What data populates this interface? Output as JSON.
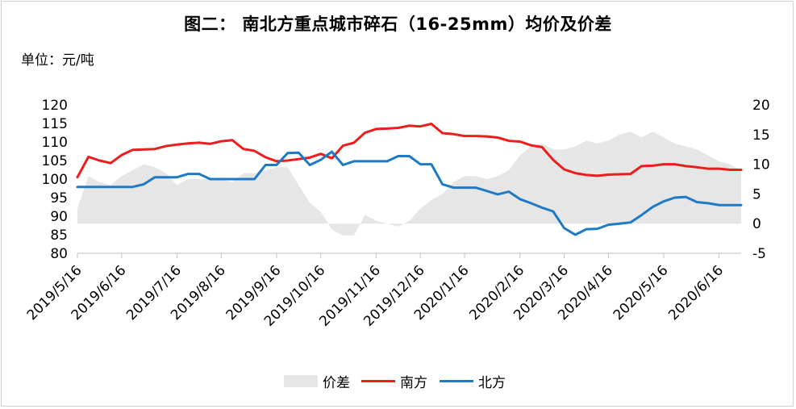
{
  "title": "图二：   南北方重点城市碎石（16-25mm）均价及价差",
  "unit": "单位：元/吨",
  "colors": {
    "spread": "#e6e6e6",
    "south": "#ee1c1c",
    "north": "#1e7ac6"
  },
  "chart_data": {
    "type": "line",
    "x": [
      "2019/5/16",
      "2019/5/23",
      "2019/5/30",
      "2019/6/6",
      "2019/6/13",
      "2019/6/20",
      "2019/6/27",
      "2019/7/4",
      "2019/7/11",
      "2019/7/18",
      "2019/7/25",
      "2019/8/1",
      "2019/8/8",
      "2019/8/15",
      "2019/8/22",
      "2019/8/29",
      "2019/9/5",
      "2019/9/12",
      "2019/9/19",
      "2019/9/26",
      "2019/10/3",
      "2019/10/10",
      "2019/10/17",
      "2019/10/24",
      "2019/10/31",
      "2019/11/7",
      "2019/11/14",
      "2019/11/21",
      "2019/11/28",
      "2019/12/5",
      "2019/12/12",
      "2019/12/19",
      "2019/12/26",
      "2020/1/2",
      "2020/1/9",
      "2020/1/16",
      "2020/1/23",
      "2020/1/30",
      "2020/2/6",
      "2020/2/13",
      "2020/2/20",
      "2020/2/27",
      "2020/3/5",
      "2020/3/12",
      "2020/3/19",
      "2020/3/26",
      "2020/4/2",
      "2020/4/9",
      "2020/4/16",
      "2020/4/23",
      "2020/4/30",
      "2020/5/7",
      "2020/5/14",
      "2020/5/21",
      "2020/5/28",
      "2020/6/4",
      "2020/6/11",
      "2020/6/18",
      "2020/6/25",
      "2020/7/2",
      "2020/7/9"
    ],
    "x_tick_labels": [
      "2019/5/16",
      "2019/6/16",
      "2019/7/16",
      "2019/8/16",
      "2019/9/16",
      "2019/10/16",
      "2019/11/16",
      "2019/12/16",
      "2020/1/16",
      "2020/2/16",
      "2020/3/16",
      "2020/4/16",
      "2020/5/16",
      "2020/6/16"
    ],
    "y_left": {
      "min": 80,
      "max": 120,
      "step": 5,
      "ticks": [
        "120",
        "115",
        "110",
        "105",
        "100",
        "95",
        "90",
        "85",
        "80"
      ]
    },
    "y_right": {
      "min": -5,
      "max": 20,
      "step": 5,
      "ticks": [
        "20",
        "15",
        "10",
        "5",
        "0",
        "-5"
      ]
    },
    "series": [
      {
        "name": "价差",
        "type": "area",
        "axis": "right",
        "values": [
          2.5,
          8,
          7,
          6.5,
          8,
          9,
          10,
          9.5,
          8.5,
          6.5,
          7.5,
          7.5,
          7.5,
          7.5,
          7,
          8.5,
          8.5,
          9,
          9.5,
          9.5,
          6.5,
          3.5,
          2,
          -1,
          -2,
          -2,
          1.5,
          0.5,
          0,
          -0.5,
          0.5,
          2.5,
          4,
          5,
          7,
          8,
          8,
          7.5,
          8,
          9,
          11.5,
          13,
          13.5,
          12.5,
          12.5,
          13,
          14,
          13.5,
          14,
          15,
          15.5,
          14.5,
          15.5,
          14.5,
          13.5,
          13,
          12.5,
          11.5,
          10.5,
          10,
          9
        ]
      },
      {
        "name": "南方",
        "type": "line",
        "axis": "left",
        "values": [
          100.5,
          106,
          105,
          104.3,
          106.5,
          107.9,
          108,
          108.1,
          108.9,
          109.3,
          109.6,
          109.8,
          109.5,
          110.2,
          110.5,
          108.1,
          107.6,
          105.9,
          104.8,
          105,
          105.4,
          105.8,
          106.8,
          105.6,
          109,
          109.8,
          112.5,
          113.5,
          113.6,
          113.8,
          114.4,
          114.2,
          114.9,
          112.4,
          112.1,
          111.6,
          111.6,
          111.5,
          111.2,
          110.3,
          110.1,
          109.1,
          108.6,
          105.2,
          102.6,
          101.6,
          101.1,
          100.9,
          101.2,
          101.3,
          101.4,
          103.5,
          103.6,
          104,
          104,
          103.5,
          103.2,
          102.8,
          102.8,
          102.5,
          102.5
        ]
      },
      {
        "name": "北方",
        "type": "line",
        "axis": "left",
        "values": [
          97.9,
          97.9,
          97.9,
          97.9,
          97.9,
          97.9,
          98.6,
          100.5,
          100.5,
          100.5,
          101.4,
          101.4,
          100,
          100,
          100,
          100,
          100,
          103.8,
          103.8,
          107,
          107.1,
          103.8,
          105.2,
          107.4,
          103.8,
          104.8,
          104.8,
          104.8,
          104.8,
          106.2,
          106.2,
          104,
          104,
          98.6,
          97.7,
          97.7,
          97.7,
          96.8,
          95.9,
          96.6,
          94.6,
          93.5,
          92.3,
          91.3,
          86.8,
          85,
          86.5,
          86.6,
          87.7,
          88,
          88.3,
          90.3,
          92.5,
          94,
          95,
          95.2,
          93.8,
          93.5,
          93,
          93,
          93
        ]
      }
    ],
    "legend": [
      "价差",
      "南方",
      "北方"
    ],
    "legend_position": "bottom",
    "grid": false
  }
}
